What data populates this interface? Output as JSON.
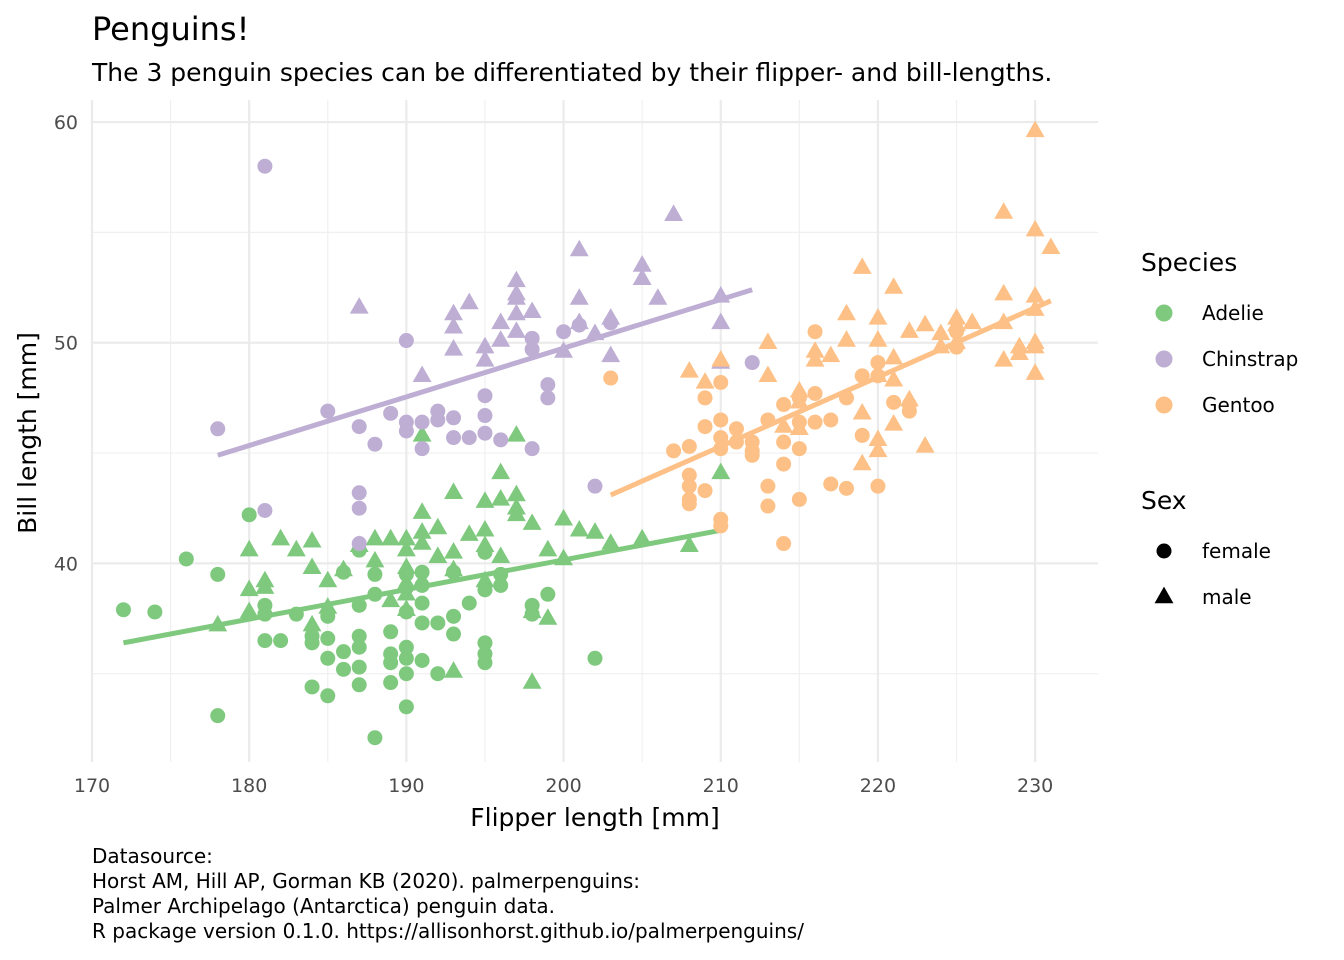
{
  "title": "Penguins!",
  "subtitle": "The 3 penguin species can be differentiated by their flipper- and bill-lengths.",
  "caption": [
    "Datasource:",
    "Horst AM, Hill AP, Gorman KB (2020). palmerpenguins:",
    "Palmer Archipelago (Antarctica) penguin data.",
    "R package version 0.1.0. https://allisonhorst.github.io/palmerpenguins/"
  ],
  "chart_data": {
    "type": "scatter",
    "xlabel": "Flipper length [mm]",
    "ylabel": "Bill length [mm]",
    "xlim": [
      170,
      234
    ],
    "ylim": [
      31,
      61
    ],
    "xticks": [
      170,
      180,
      190,
      200,
      210,
      220,
      230
    ],
    "yticks": [
      40,
      50,
      60
    ],
    "grid": true,
    "legend": {
      "placement": "right",
      "species_title": "Species",
      "sex_title": "Sex",
      "species": [
        {
          "name": "Adelie",
          "color": "#7FC97F"
        },
        {
          "name": "Chinstrap",
          "color": "#BEAED4"
        },
        {
          "name": "Gentoo",
          "color": "#FDC086"
        }
      ],
      "sex": [
        {
          "name": "female",
          "shape": "circle"
        },
        {
          "name": "male",
          "shape": "triangle"
        }
      ]
    },
    "series": [
      {
        "name": "Adelie",
        "color": "#7FC97F",
        "trend": {
          "x": [
            172,
            210
          ],
          "y": [
            36.4,
            41.5
          ]
        },
        "female": [
          [
            172,
            37.9
          ],
          [
            174,
            37.8
          ],
          [
            176,
            40.2
          ],
          [
            178,
            39.5
          ],
          [
            178,
            33.1
          ],
          [
            180,
            42.2
          ],
          [
            181,
            38.1
          ],
          [
            181,
            37.7
          ],
          [
            181,
            36.5
          ],
          [
            182,
            36.5
          ],
          [
            183,
            37.7
          ],
          [
            184,
            36.7
          ],
          [
            184,
            36.4
          ],
          [
            184,
            34.4
          ],
          [
            185,
            37.6
          ],
          [
            185,
            36.6
          ],
          [
            185,
            35.7
          ],
          [
            185,
            34.0
          ],
          [
            186,
            39.6
          ],
          [
            186,
            36.0
          ],
          [
            186,
            35.2
          ],
          [
            187,
            38.1
          ],
          [
            187,
            36.7
          ],
          [
            187,
            36.2
          ],
          [
            187,
            35.3
          ],
          [
            187,
            34.5
          ],
          [
            187,
            40.6
          ],
          [
            188,
            32.1
          ],
          [
            188,
            38.6
          ],
          [
            188,
            39.5
          ],
          [
            189,
            36.9
          ],
          [
            189,
            35.9
          ],
          [
            189,
            35.5
          ],
          [
            189,
            34.6
          ],
          [
            190,
            39.5
          ],
          [
            190,
            38.9
          ],
          [
            190,
            37.8
          ],
          [
            190,
            36.2
          ],
          [
            190,
            35.7
          ],
          [
            190,
            35.0
          ],
          [
            190,
            33.5
          ],
          [
            191,
            38.2
          ],
          [
            191,
            39.0
          ],
          [
            191,
            37.3
          ],
          [
            191,
            35.6
          ],
          [
            191,
            39.6
          ],
          [
            192,
            37.3
          ],
          [
            192,
            35.0
          ],
          [
            193,
            37.6
          ],
          [
            193,
            36.8
          ],
          [
            193,
            39.6
          ],
          [
            194,
            38.2
          ],
          [
            195,
            36.4
          ],
          [
            195,
            35.9
          ],
          [
            195,
            35.5
          ],
          [
            195,
            40.5
          ],
          [
            195,
            38.8
          ],
          [
            196,
            39.0
          ],
          [
            196,
            39.5
          ],
          [
            198,
            38.1
          ],
          [
            198,
            37.7
          ],
          [
            199,
            38.6
          ],
          [
            202,
            35.7
          ]
        ],
        "male": [
          [
            178,
            37.2
          ],
          [
            180,
            40.6
          ],
          [
            180,
            38.8
          ],
          [
            180,
            37.8
          ],
          [
            181,
            39.2
          ],
          [
            181,
            38.9
          ],
          [
            182,
            41.1
          ],
          [
            183,
            40.6
          ],
          [
            184,
            41.0
          ],
          [
            184,
            39.8
          ],
          [
            184,
            37.2
          ],
          [
            185,
            39.2
          ],
          [
            185,
            38.0
          ],
          [
            186,
            39.7
          ],
          [
            187,
            40.8
          ],
          [
            188,
            40.1
          ],
          [
            188,
            41.1
          ],
          [
            189,
            41.1
          ],
          [
            189,
            38.3
          ],
          [
            190,
            41.1
          ],
          [
            190,
            39.8
          ],
          [
            190,
            39.1
          ],
          [
            190,
            38.6
          ],
          [
            190,
            37.9
          ],
          [
            190,
            40.6
          ],
          [
            191,
            41.4
          ],
          [
            191,
            40.9
          ],
          [
            191,
            42.3
          ],
          [
            191,
            39.2
          ],
          [
            191,
            45.8
          ],
          [
            192,
            41.6
          ],
          [
            192,
            40.3
          ],
          [
            193,
            43.2
          ],
          [
            193,
            40.5
          ],
          [
            193,
            39.7
          ],
          [
            193,
            35.1
          ],
          [
            194,
            41.3
          ],
          [
            195,
            42.8
          ],
          [
            195,
            41.5
          ],
          [
            195,
            40.8
          ],
          [
            195,
            39.2
          ],
          [
            196,
            42.9
          ],
          [
            196,
            40.3
          ],
          [
            196,
            44.1
          ],
          [
            197,
            43.1
          ],
          [
            197,
            42.5
          ],
          [
            197,
            45.8
          ],
          [
            197,
            42.2
          ],
          [
            198,
            41.8
          ],
          [
            198,
            34.6
          ],
          [
            198,
            37.8
          ],
          [
            199,
            37.5
          ],
          [
            199,
            40.6
          ],
          [
            200,
            42.0
          ],
          [
            200,
            40.2
          ],
          [
            201,
            41.5
          ],
          [
            202,
            41.4
          ],
          [
            203,
            40.9
          ],
          [
            205,
            41.1
          ],
          [
            208,
            40.8
          ],
          [
            210,
            44.1
          ]
        ]
      },
      {
        "name": "Chinstrap",
        "color": "#BEAED4",
        "trend": {
          "x": [
            178,
            212
          ],
          "y": [
            44.9,
            52.4
          ]
        },
        "female": [
          [
            178,
            46.1
          ],
          [
            181,
            58.0
          ],
          [
            181,
            42.4
          ],
          [
            185,
            46.9
          ],
          [
            187,
            46.2
          ],
          [
            187,
            43.2
          ],
          [
            187,
            42.5
          ],
          [
            187,
            40.9
          ],
          [
            188,
            45.4
          ],
          [
            189,
            46.8
          ],
          [
            190,
            50.1
          ],
          [
            190,
            46.4
          ],
          [
            190,
            46.0
          ],
          [
            191,
            46.4
          ],
          [
            191,
            45.2
          ],
          [
            192,
            46.9
          ],
          [
            192,
            46.5
          ],
          [
            193,
            46.6
          ],
          [
            193,
            45.7
          ],
          [
            194,
            45.7
          ],
          [
            195,
            46.7
          ],
          [
            195,
            47.6
          ],
          [
            195,
            45.9
          ],
          [
            196,
            45.6
          ],
          [
            198,
            50.2
          ],
          [
            198,
            49.7
          ],
          [
            198,
            45.2
          ],
          [
            199,
            48.1
          ],
          [
            199,
            47.5
          ],
          [
            200,
            50.5
          ],
          [
            201,
            50.8
          ],
          [
            202,
            43.5
          ],
          [
            203,
            50.9
          ],
          [
            212,
            49.1
          ]
        ],
        "male": [
          [
            187,
            51.6
          ],
          [
            191,
            48.5
          ],
          [
            193,
            51.3
          ],
          [
            193,
            50.7
          ],
          [
            193,
            49.7
          ],
          [
            194,
            51.8
          ],
          [
            195,
            49.8
          ],
          [
            195,
            49.2
          ],
          [
            196,
            50.9
          ],
          [
            196,
            50.1
          ],
          [
            197,
            52.8
          ],
          [
            197,
            52.2
          ],
          [
            197,
            52.0
          ],
          [
            197,
            51.3
          ],
          [
            197,
            50.5
          ],
          [
            198,
            51.4
          ],
          [
            200,
            49.6
          ],
          [
            201,
            54.2
          ],
          [
            201,
            52.0
          ],
          [
            201,
            50.9
          ],
          [
            202,
            50.4
          ],
          [
            203,
            51.1
          ],
          [
            203,
            49.4
          ],
          [
            205,
            53.5
          ],
          [
            205,
            52.9
          ],
          [
            206,
            52.0
          ],
          [
            207,
            55.8
          ],
          [
            210,
            52.1
          ],
          [
            210,
            50.9
          ],
          [
            210,
            49.1
          ]
        ]
      },
      {
        "name": "Gentoo",
        "color": "#FDC086",
        "trend": {
          "x": [
            203,
            231
          ],
          "y": [
            43.1,
            51.9
          ]
        },
        "female": [
          [
            203,
            48.4
          ],
          [
            207,
            45.1
          ],
          [
            208,
            45.3
          ],
          [
            208,
            44.0
          ],
          [
            208,
            43.5
          ],
          [
            208,
            42.9
          ],
          [
            208,
            42.7
          ],
          [
            209,
            47.5
          ],
          [
            209,
            46.2
          ],
          [
            209,
            43.3
          ],
          [
            210,
            48.2
          ],
          [
            210,
            46.5
          ],
          [
            210,
            45.7
          ],
          [
            210,
            45.2
          ],
          [
            210,
            42.0
          ],
          [
            210,
            41.7
          ],
          [
            211,
            46.1
          ],
          [
            211,
            45.5
          ],
          [
            212,
            45.5
          ],
          [
            212,
            45.1
          ],
          [
            212,
            44.9
          ],
          [
            213,
            46.5
          ],
          [
            213,
            43.5
          ],
          [
            213,
            42.6
          ],
          [
            214,
            47.2
          ],
          [
            214,
            45.5
          ],
          [
            214,
            44.5
          ],
          [
            214,
            40.9
          ],
          [
            215,
            47.5
          ],
          [
            215,
            46.4
          ],
          [
            215,
            45.2
          ],
          [
            215,
            42.9
          ],
          [
            216,
            50.5
          ],
          [
            216,
            47.7
          ],
          [
            216,
            46.4
          ],
          [
            217,
            46.5
          ],
          [
            217,
            43.6
          ],
          [
            218,
            47.5
          ],
          [
            218,
            43.4
          ],
          [
            219,
            48.5
          ],
          [
            219,
            45.8
          ],
          [
            220,
            49.1
          ],
          [
            220,
            48.5
          ],
          [
            220,
            43.5
          ],
          [
            221,
            47.3
          ],
          [
            222,
            46.9
          ],
          [
            222,
            47.2
          ],
          [
            225,
            50.5
          ],
          [
            225,
            49.8
          ]
        ],
        "male": [
          [
            208,
            48.7
          ],
          [
            209,
            48.2
          ],
          [
            210,
            49.2
          ],
          [
            213,
            50.0
          ],
          [
            213,
            48.5
          ],
          [
            214,
            46.2
          ],
          [
            215,
            47.8
          ],
          [
            215,
            47.3
          ],
          [
            215,
            46.1
          ],
          [
            216,
            49.6
          ],
          [
            216,
            49.2
          ],
          [
            217,
            49.4
          ],
          [
            218,
            51.3
          ],
          [
            218,
            50.1
          ],
          [
            219,
            53.4
          ],
          [
            219,
            46.8
          ],
          [
            219,
            44.5
          ],
          [
            220,
            51.1
          ],
          [
            220,
            50.1
          ],
          [
            220,
            48.5
          ],
          [
            220,
            45.6
          ],
          [
            220,
            45.1
          ],
          [
            221,
            52.5
          ],
          [
            221,
            49.3
          ],
          [
            221,
            48.3
          ],
          [
            221,
            46.3
          ],
          [
            222,
            50.5
          ],
          [
            222,
            47.4
          ],
          [
            223,
            50.8
          ],
          [
            223,
            45.3
          ],
          [
            224,
            50.4
          ],
          [
            224,
            49.8
          ],
          [
            225,
            51.1
          ],
          [
            225,
            50.8
          ],
          [
            225,
            50.0
          ],
          [
            226,
            50.9
          ],
          [
            228,
            55.9
          ],
          [
            228,
            52.2
          ],
          [
            228,
            50.9
          ],
          [
            228,
            49.2
          ],
          [
            229,
            49.8
          ],
          [
            229,
            49.5
          ],
          [
            230,
            59.6
          ],
          [
            230,
            55.1
          ],
          [
            230,
            52.1
          ],
          [
            230,
            51.5
          ],
          [
            230,
            50.0
          ],
          [
            230,
            49.8
          ],
          [
            230,
            48.6
          ],
          [
            231,
            54.3
          ]
        ]
      }
    ]
  }
}
